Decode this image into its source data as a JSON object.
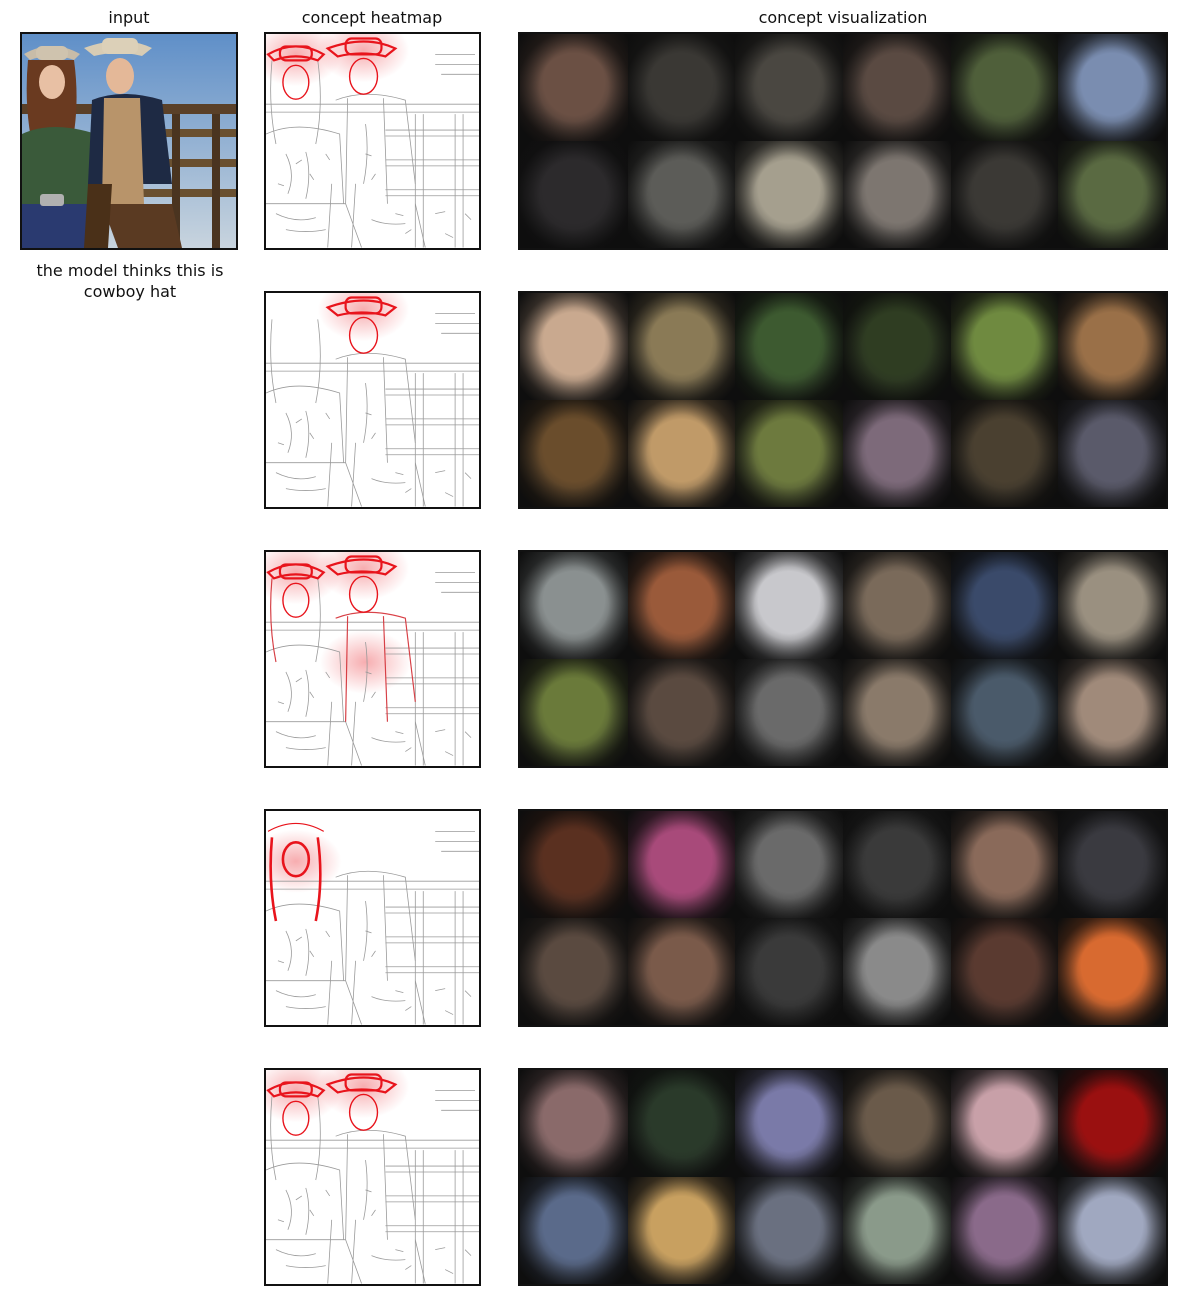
{
  "headers": {
    "input": "input",
    "heatmap": "concept heatmap",
    "visualization": "concept visualization"
  },
  "caption": "the model thinks this is cowboy hat",
  "accent_color": "#e8141c",
  "rows": [
    {
      "heat_focus": [
        "hat-left",
        "hat-right"
      ],
      "tiles": [
        "#6b5044",
        "#3a3834",
        "#4a4741",
        "#5a4a42",
        "#4f5f3a",
        "#7a8db0",
        "#2c2a2c",
        "#5c5c58",
        "#a59f8e",
        "#7d7670",
        "#3b3935",
        "#5a6a42"
      ]
    },
    {
      "heat_focus": [
        "hat-right"
      ],
      "tiles": [
        "#c9a98f",
        "#8a7a56",
        "#3d5a30",
        "#2f3d22",
        "#6f8a40",
        "#9a7048",
        "#6a4d2c",
        "#c09a68",
        "#6d7a3e",
        "#7d6a7a",
        "#4a4030",
        "#5a5a6a"
      ]
    },
    {
      "heat_focus": [
        "hat-left",
        "hat-right",
        "body"
      ],
      "tiles": [
        "#8a9090",
        "#9a5a3a",
        "#c8c8cc",
        "#7a6a5a",
        "#3a4a6a",
        "#9a9080",
        "#6a7a3a",
        "#5a4a40",
        "#6a6a6a",
        "#8a7a6a",
        "#4a5a6a",
        "#a08a7a"
      ]
    },
    {
      "heat_focus": [
        "face-left"
      ],
      "tiles": [
        "#5a3020",
        "#a84a7a",
        "#6a6a6a",
        "#3a3a3a",
        "#8a6a5a",
        "#3a3a40",
        "#5a4a40",
        "#7a5a4a",
        "#3a3a3a",
        "#8a8a8a",
        "#5a3a30",
        "#d86a30"
      ]
    },
    {
      "heat_focus": [
        "hat-left",
        "hat-right"
      ],
      "tiles": [
        "#8a6a6a",
        "#2a3a2a",
        "#7a7aa8",
        "#6a5a4a",
        "#c8a0a8",
        "#9a1010",
        "#5a6a8a",
        "#c8a060",
        "#6a7080",
        "#8a9a8a",
        "#8a6a8a",
        "#a0a8c0"
      ]
    }
  ]
}
